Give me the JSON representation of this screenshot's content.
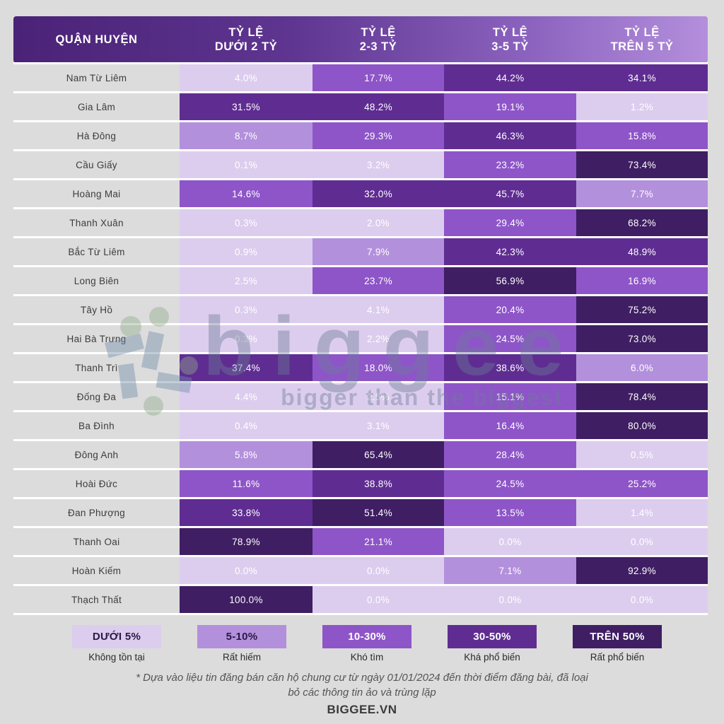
{
  "colors": {
    "tiers": [
      "#dccdee",
      "#b390dc",
      "#8e55c8",
      "#5f2d92",
      "#3f1e63"
    ],
    "header_start": "#4a2276",
    "header_end": "#b48fdc"
  },
  "header": {
    "col0": "QUẬN HUYỆN",
    "cols": [
      [
        "TỶ LỆ",
        "DƯỚI 2 TỶ"
      ],
      [
        "TỶ LỆ",
        "2-3 TỶ"
      ],
      [
        "TỶ LỆ",
        "3-5 TỶ"
      ],
      [
        "TỶ LỆ",
        "TRÊN 5 TỶ"
      ]
    ]
  },
  "chart_data": {
    "type": "table",
    "columns": [
      "QUẬN HUYỆN",
      "TỶ LỆ DƯỚI 2 TỶ",
      "TỶ LỆ 2-3 TỶ",
      "TỶ LỆ 3-5 TỶ",
      "TỶ LỆ TRÊN 5 TỶ"
    ],
    "rows": [
      {
        "name": "Nam Từ Liêm",
        "values": [
          "4.0%",
          "17.7%",
          "44.2%",
          "34.1%"
        ]
      },
      {
        "name": "Gia Lâm",
        "values": [
          "31.5%",
          "48.2%",
          "19.1%",
          "1.2%"
        ]
      },
      {
        "name": "Hà Đông",
        "values": [
          "8.7%",
          "29.3%",
          "46.3%",
          "15.8%"
        ]
      },
      {
        "name": "Cầu Giấy",
        "values": [
          "0.1%",
          "3.2%",
          "23.2%",
          "73.4%"
        ]
      },
      {
        "name": "Hoàng Mai",
        "values": [
          "14.6%",
          "32.0%",
          "45.7%",
          "7.7%"
        ]
      },
      {
        "name": "Thanh Xuân",
        "values": [
          "0.3%",
          "2.0%",
          "29.4%",
          "68.2%"
        ]
      },
      {
        "name": "Bắc Từ Liêm",
        "values": [
          "0.9%",
          "7.9%",
          "42.3%",
          "48.9%"
        ]
      },
      {
        "name": "Long Biên",
        "values": [
          "2.5%",
          "23.7%",
          "56.9%",
          "16.9%"
        ]
      },
      {
        "name": "Tây Hồ",
        "values": [
          "0.3%",
          "4.1%",
          "20.4%",
          "75.2%"
        ]
      },
      {
        "name": "Hai Bà Trưng",
        "values": [
          "0.3%",
          "2.2%",
          "24.5%",
          "73.0%"
        ]
      },
      {
        "name": "Thanh Trì",
        "values": [
          "37.4%",
          "18.0%",
          "38.6%",
          "6.0%"
        ]
      },
      {
        "name": "Đống Đa",
        "values": [
          "4.4%",
          "2.5%",
          "15.1%",
          "78.4%"
        ]
      },
      {
        "name": "Ba Đình",
        "values": [
          "0.4%",
          "3.1%",
          "16.4%",
          "80.0%"
        ]
      },
      {
        "name": "Đông Anh",
        "values": [
          "5.8%",
          "65.4%",
          "28.4%",
          "0.5%"
        ]
      },
      {
        "name": "Hoài Đức",
        "values": [
          "11.6%",
          "38.8%",
          "24.5%",
          "25.2%"
        ]
      },
      {
        "name": "Đan Phượng",
        "values": [
          "33.8%",
          "51.4%",
          "13.5%",
          "1.4%"
        ]
      },
      {
        "name": "Thanh Oai",
        "values": [
          "78.9%",
          "21.1%",
          "0.0%",
          "0.0%"
        ]
      },
      {
        "name": "Hoàn Kiếm",
        "values": [
          "0.0%",
          "0.0%",
          "7.1%",
          "92.9%"
        ]
      },
      {
        "name": "Thạch Thất",
        "values": [
          "100.0%",
          "0.0%",
          "0.0%",
          "0.0%"
        ]
      }
    ]
  },
  "legend": [
    {
      "range": "DƯỚI 5%",
      "label": "Không tồn tại"
    },
    {
      "range": "5-10%",
      "label": "Rất hiếm"
    },
    {
      "range": "10-30%",
      "label": "Khó tìm"
    },
    {
      "range": "30-50%",
      "label": "Khá phổ biến"
    },
    {
      "range": "TRÊN 50%",
      "label": "Rất phổ biến"
    }
  ],
  "watermark": {
    "wordmark": "biggee",
    "tagline": "bigger than the biggest"
  },
  "footnote": {
    "line1": "* Dựa vào liệu tin đăng bán căn hộ chung cư từ ngày 01/01/2024 đến thời điểm đăng bài, đã loại",
    "line2": "bỏ các thông tin ảo và trùng lặp"
  },
  "brand": "BIGGEE.VN"
}
